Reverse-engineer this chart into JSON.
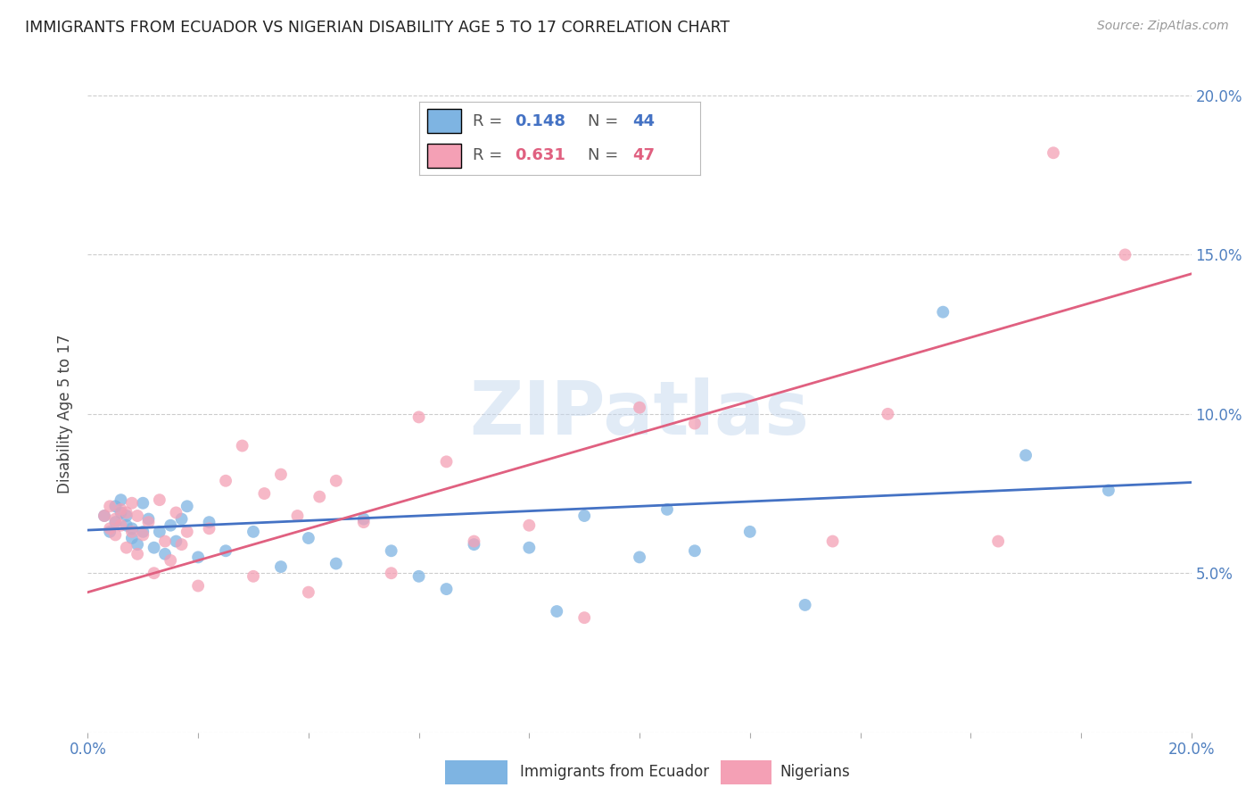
{
  "title": "IMMIGRANTS FROM ECUADOR VS NIGERIAN DISABILITY AGE 5 TO 17 CORRELATION CHART",
  "source": "Source: ZipAtlas.com",
  "ylabel": "Disability Age 5 to 17",
  "xlim": [
    0.0,
    0.2
  ],
  "ylim": [
    0.0,
    0.2
  ],
  "ytick_vals": [
    0.0,
    0.05,
    0.1,
    0.15,
    0.2
  ],
  "xtick_vals": [
    0.0,
    0.02,
    0.04,
    0.06,
    0.08,
    0.1,
    0.12,
    0.14,
    0.16,
    0.18,
    0.2
  ],
  "ecuador_R": 0.148,
  "ecuador_N": 44,
  "nigeria_R": 0.631,
  "nigeria_N": 47,
  "ecuador_color": "#7EB4E2",
  "nigeria_color": "#F4A0B5",
  "ecuador_line_color": "#4472C4",
  "nigeria_line_color": "#E06080",
  "background_color": "#FFFFFF",
  "grid_color": "#CCCCCC",
  "ecuador_x": [
    0.003,
    0.004,
    0.005,
    0.005,
    0.006,
    0.006,
    0.007,
    0.007,
    0.008,
    0.008,
    0.009,
    0.01,
    0.01,
    0.011,
    0.012,
    0.013,
    0.014,
    0.015,
    0.016,
    0.017,
    0.018,
    0.02,
    0.022,
    0.025,
    0.03,
    0.035,
    0.04,
    0.045,
    0.05,
    0.055,
    0.06,
    0.065,
    0.07,
    0.08,
    0.085,
    0.09,
    0.1,
    0.105,
    0.11,
    0.12,
    0.13,
    0.155,
    0.17,
    0.185
  ],
  "ecuador_y": [
    0.068,
    0.063,
    0.071,
    0.066,
    0.069,
    0.073,
    0.065,
    0.068,
    0.061,
    0.064,
    0.059,
    0.072,
    0.063,
    0.067,
    0.058,
    0.063,
    0.056,
    0.065,
    0.06,
    0.067,
    0.071,
    0.055,
    0.066,
    0.057,
    0.063,
    0.052,
    0.061,
    0.053,
    0.067,
    0.057,
    0.049,
    0.045,
    0.059,
    0.058,
    0.038,
    0.068,
    0.055,
    0.07,
    0.057,
    0.063,
    0.04,
    0.132,
    0.087,
    0.076
  ],
  "nigeria_x": [
    0.003,
    0.004,
    0.004,
    0.005,
    0.005,
    0.006,
    0.006,
    0.007,
    0.007,
    0.008,
    0.008,
    0.009,
    0.009,
    0.01,
    0.011,
    0.012,
    0.013,
    0.014,
    0.015,
    0.016,
    0.017,
    0.018,
    0.02,
    0.022,
    0.025,
    0.028,
    0.03,
    0.032,
    0.035,
    0.038,
    0.04,
    0.042,
    0.045,
    0.05,
    0.055,
    0.06,
    0.065,
    0.07,
    0.08,
    0.09,
    0.1,
    0.11,
    0.135,
    0.145,
    0.165,
    0.175,
    0.188
  ],
  "nigeria_y": [
    0.068,
    0.071,
    0.064,
    0.067,
    0.062,
    0.07,
    0.065,
    0.069,
    0.058,
    0.072,
    0.063,
    0.056,
    0.068,
    0.062,
    0.066,
    0.05,
    0.073,
    0.06,
    0.054,
    0.069,
    0.059,
    0.063,
    0.046,
    0.064,
    0.079,
    0.09,
    0.049,
    0.075,
    0.081,
    0.068,
    0.044,
    0.074,
    0.079,
    0.066,
    0.05,
    0.099,
    0.085,
    0.06,
    0.065,
    0.036,
    0.102,
    0.097,
    0.06,
    0.1,
    0.06,
    0.182,
    0.15
  ],
  "ecuador_line_intercept": 0.0635,
  "ecuador_line_slope": 0.075,
  "nigeria_line_intercept": 0.044,
  "nigeria_line_slope": 0.5
}
